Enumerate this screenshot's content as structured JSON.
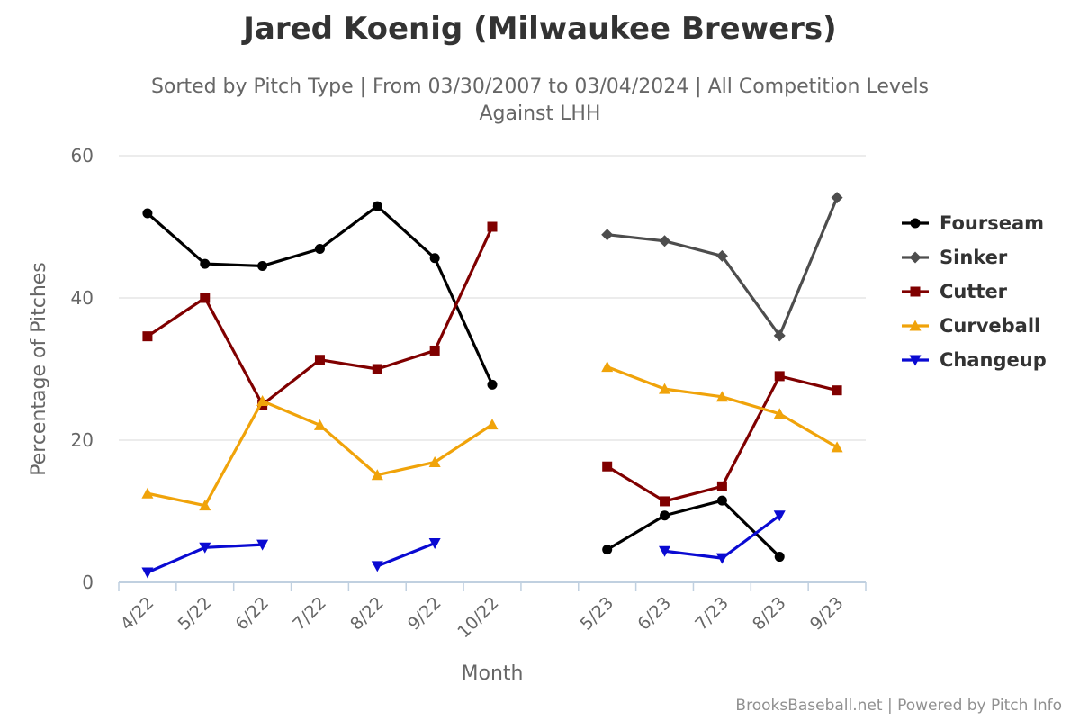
{
  "credits": "BrooksBaseball.net | Powered by Pitch Info",
  "chart_data": {
    "type": "line",
    "title": "Jared Koenig (Milwaukee Brewers)",
    "subtitle": [
      "Sorted by Pitch Type | From 03/30/2007 to 03/04/2024 | All Competition Levels",
      "Against LHH"
    ],
    "xlabel": "Month",
    "ylabel": "Percentage of Pitches",
    "ylim": [
      0,
      60
    ],
    "yticks": [
      0,
      20,
      40,
      60
    ],
    "grid": true,
    "legend_position": "right",
    "categories": [
      "4/22",
      "5/22",
      "6/22",
      "7/22",
      "8/22",
      "9/22",
      "10/22",
      "",
      "5/23",
      "6/23",
      "7/23",
      "8/23",
      "9/23"
    ],
    "series": [
      {
        "name": "Fourseam",
        "color": "#000000",
        "marker": "circle",
        "values": [
          51.9,
          44.8,
          44.5,
          46.9,
          52.9,
          45.6,
          27.8,
          null,
          4.6,
          9.4,
          11.5,
          3.6,
          null
        ]
      },
      {
        "name": "Sinker",
        "color": "#4d4d4d",
        "marker": "diamond",
        "values": [
          null,
          null,
          null,
          null,
          null,
          null,
          null,
          null,
          48.9,
          48.0,
          45.9,
          34.7,
          54.1
        ]
      },
      {
        "name": "Cutter",
        "color": "#800000",
        "marker": "square",
        "values": [
          34.6,
          40.0,
          25.0,
          31.3,
          30.0,
          32.6,
          50.0,
          null,
          16.3,
          11.4,
          13.5,
          29.0,
          27.0
        ]
      },
      {
        "name": "Curveball",
        "color": "#f0a30a",
        "marker": "triangle",
        "values": [
          12.5,
          10.8,
          25.5,
          22.1,
          15.1,
          16.9,
          22.2,
          null,
          30.3,
          27.2,
          26.1,
          23.7,
          19.0
        ]
      },
      {
        "name": "Changeup",
        "color": "#0a0ad2",
        "marker": "triangle-down",
        "values": [
          1.4,
          4.9,
          5.3,
          null,
          2.3,
          5.5,
          null,
          null,
          null,
          4.4,
          3.4,
          9.4,
          null
        ]
      }
    ]
  }
}
